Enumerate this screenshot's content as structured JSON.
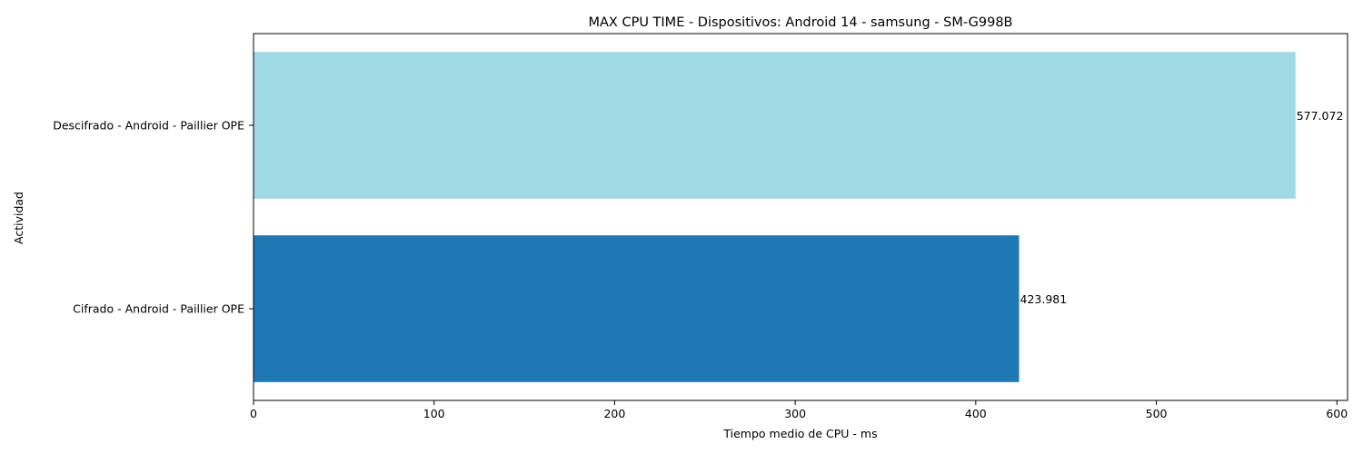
{
  "chart_data": {
    "type": "bar",
    "orientation": "horizontal",
    "title": "MAX CPU TIME - Dispositivos: Android 14 - samsung - SM-G998B",
    "xlabel": "Tiempo medio de CPU - ms",
    "ylabel": "Actividad",
    "categories": [
      "Cifrado - Android - Paillier OPE",
      "Descifrado - Android - Paillier OPE"
    ],
    "values": [
      423.981,
      577.072
    ],
    "value_labels": [
      "423.981",
      "577.072"
    ],
    "colors": [
      "#1f77b4",
      "#9fdae4"
    ],
    "xlim": [
      0,
      605.9
    ],
    "xticks": [
      0,
      100,
      200,
      300,
      400,
      500,
      600
    ],
    "grid": false,
    "legend": "none"
  }
}
